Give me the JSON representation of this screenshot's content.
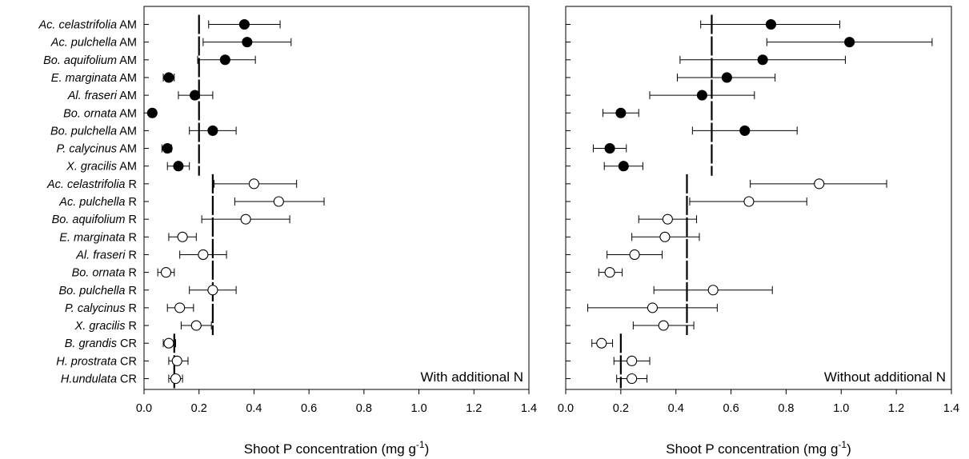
{
  "chart_data": [
    {
      "type": "scatter",
      "panel_label": "With additional N",
      "xlabel": "Shoot P concentration (mg g-1)",
      "xlabel_main": "Shoot P concentration (mg g",
      "xlabel_sup": "-1",
      "xlabel_end": ")",
      "xlim": [
        0.0,
        1.4
      ],
      "xticks": [
        "0.0",
        "0.2",
        "0.4",
        "0.6",
        "0.8",
        "1.0",
        "1.2",
        "1.4"
      ],
      "groups": [
        {
          "marker": "filled",
          "reference_line": 0.2,
          "first": 0,
          "last": 8
        },
        {
          "marker": "open",
          "reference_line": 0.25,
          "first": 9,
          "last": 17
        },
        {
          "marker": "open",
          "reference_line": 0.11,
          "first": 18,
          "last": 20
        }
      ],
      "points": [
        {
          "x": 0.365,
          "lo": 0.235,
          "hi": 0.495
        },
        {
          "x": 0.375,
          "lo": 0.215,
          "hi": 0.535
        },
        {
          "x": 0.295,
          "lo": 0.195,
          "hi": 0.405
        },
        {
          "x": 0.09,
          "lo": 0.07,
          "hi": 0.11
        },
        {
          "x": 0.185,
          "lo": 0.125,
          "hi": 0.25
        },
        {
          "x": 0.03,
          "lo": 0.02,
          "hi": 0.04
        },
        {
          "x": 0.25,
          "lo": 0.165,
          "hi": 0.335
        },
        {
          "x": 0.085,
          "lo": 0.065,
          "hi": 0.1
        },
        {
          "x": 0.125,
          "lo": 0.085,
          "hi": 0.165
        },
        {
          "x": 0.4,
          "lo": 0.255,
          "hi": 0.555
        },
        {
          "x": 0.49,
          "lo": 0.33,
          "hi": 0.655
        },
        {
          "x": 0.37,
          "lo": 0.21,
          "hi": 0.53
        },
        {
          "x": 0.14,
          "lo": 0.09,
          "hi": 0.19
        },
        {
          "x": 0.215,
          "lo": 0.13,
          "hi": 0.3
        },
        {
          "x": 0.08,
          "lo": 0.05,
          "hi": 0.11
        },
        {
          "x": 0.25,
          "lo": 0.165,
          "hi": 0.335
        },
        {
          "x": 0.13,
          "lo": 0.085,
          "hi": 0.18
        },
        {
          "x": 0.19,
          "lo": 0.135,
          "hi": 0.245
        },
        {
          "x": 0.09,
          "lo": 0.07,
          "hi": 0.115
        },
        {
          "x": 0.12,
          "lo": 0.09,
          "hi": 0.16
        },
        {
          "x": 0.115,
          "lo": 0.09,
          "hi": 0.14
        }
      ]
    },
    {
      "type": "scatter",
      "panel_label": "Without additional N",
      "xlabel": "Shoot P concentration (mg g-1)",
      "xlabel_main": "Shoot P concentration (mg g",
      "xlabel_sup": "-1",
      "xlabel_end": ")",
      "xlim": [
        0.0,
        1.4
      ],
      "xticks": [
        "0.0",
        "0.2",
        "0.4",
        "0.6",
        "0.8",
        "1.0",
        "1.2",
        "1.4"
      ],
      "groups": [
        {
          "marker": "filled",
          "reference_line": 0.53,
          "first": 0,
          "last": 8
        },
        {
          "marker": "open",
          "reference_line": 0.44,
          "first": 9,
          "last": 17
        },
        {
          "marker": "open",
          "reference_line": 0.2,
          "first": 18,
          "last": 20
        }
      ],
      "points": [
        {
          "x": 0.745,
          "lo": 0.49,
          "hi": 0.995
        },
        {
          "x": 1.03,
          "lo": 0.73,
          "hi": 1.33
        },
        {
          "x": 0.715,
          "lo": 0.415,
          "hi": 1.015
        },
        {
          "x": 0.585,
          "lo": 0.405,
          "hi": 0.76
        },
        {
          "x": 0.495,
          "lo": 0.305,
          "hi": 0.685
        },
        {
          "x": 0.2,
          "lo": 0.135,
          "hi": 0.265
        },
        {
          "x": 0.65,
          "lo": 0.46,
          "hi": 0.84
        },
        {
          "x": 0.16,
          "lo": 0.1,
          "hi": 0.22
        },
        {
          "x": 0.21,
          "lo": 0.14,
          "hi": 0.28
        },
        {
          "x": 0.92,
          "lo": 0.67,
          "hi": 1.165
        },
        {
          "x": 0.665,
          "lo": 0.45,
          "hi": 0.875
        },
        {
          "x": 0.37,
          "lo": 0.265,
          "hi": 0.475
        },
        {
          "x": 0.36,
          "lo": 0.24,
          "hi": 0.485
        },
        {
          "x": 0.25,
          "lo": 0.15,
          "hi": 0.35
        },
        {
          "x": 0.16,
          "lo": 0.12,
          "hi": 0.205
        },
        {
          "x": 0.535,
          "lo": 0.32,
          "hi": 0.75
        },
        {
          "x": 0.315,
          "lo": 0.08,
          "hi": 0.55
        },
        {
          "x": 0.355,
          "lo": 0.245,
          "hi": 0.465
        },
        {
          "x": 0.13,
          "lo": 0.095,
          "hi": 0.17
        },
        {
          "x": 0.24,
          "lo": 0.175,
          "hi": 0.305
        },
        {
          "x": 0.24,
          "lo": 0.185,
          "hi": 0.295
        }
      ]
    }
  ],
  "categories": [
    {
      "italic": "Ac. celastrifolia",
      "suffix": " AM"
    },
    {
      "italic": "Ac. pulchella",
      "suffix": " AM"
    },
    {
      "italic": "Bo. aquifolium",
      "suffix": " AM"
    },
    {
      "italic": "E. marginata",
      "suffix": " AM"
    },
    {
      "italic": "Al. fraseri",
      "suffix": " AM"
    },
    {
      "italic": "Bo. ornata",
      "suffix": " AM"
    },
    {
      "italic": "Bo. pulchella",
      "suffix": " AM"
    },
    {
      "italic": "P. calycinus",
      "suffix": " AM"
    },
    {
      "italic": "X. gracilis",
      "suffix": " AM"
    },
    {
      "italic": "Ac. celastrifolia",
      "suffix": " R"
    },
    {
      "italic": "Ac. pulchella",
      "suffix": " R"
    },
    {
      "italic": "Bo. aquifolium",
      "suffix": " R"
    },
    {
      "italic": "E. marginata",
      "suffix": " R"
    },
    {
      "italic": "Al. fraseri",
      "suffix": " R"
    },
    {
      "italic": "Bo. ornata",
      "suffix": " R"
    },
    {
      "italic": "Bo. pulchella",
      "suffix": " R"
    },
    {
      "italic": "P. calycinus",
      "suffix": " R"
    },
    {
      "italic": "X. gracilis",
      "suffix": " R"
    },
    {
      "italic": "B. grandis",
      "suffix": " CR"
    },
    {
      "italic": "H. prostrata",
      "suffix": " CR"
    },
    {
      "italic": "H.undulata",
      "suffix": " CR"
    }
  ],
  "colors": {
    "axis": "#000000",
    "filled_marker": "#000000",
    "open_marker": "#ffffff"
  }
}
